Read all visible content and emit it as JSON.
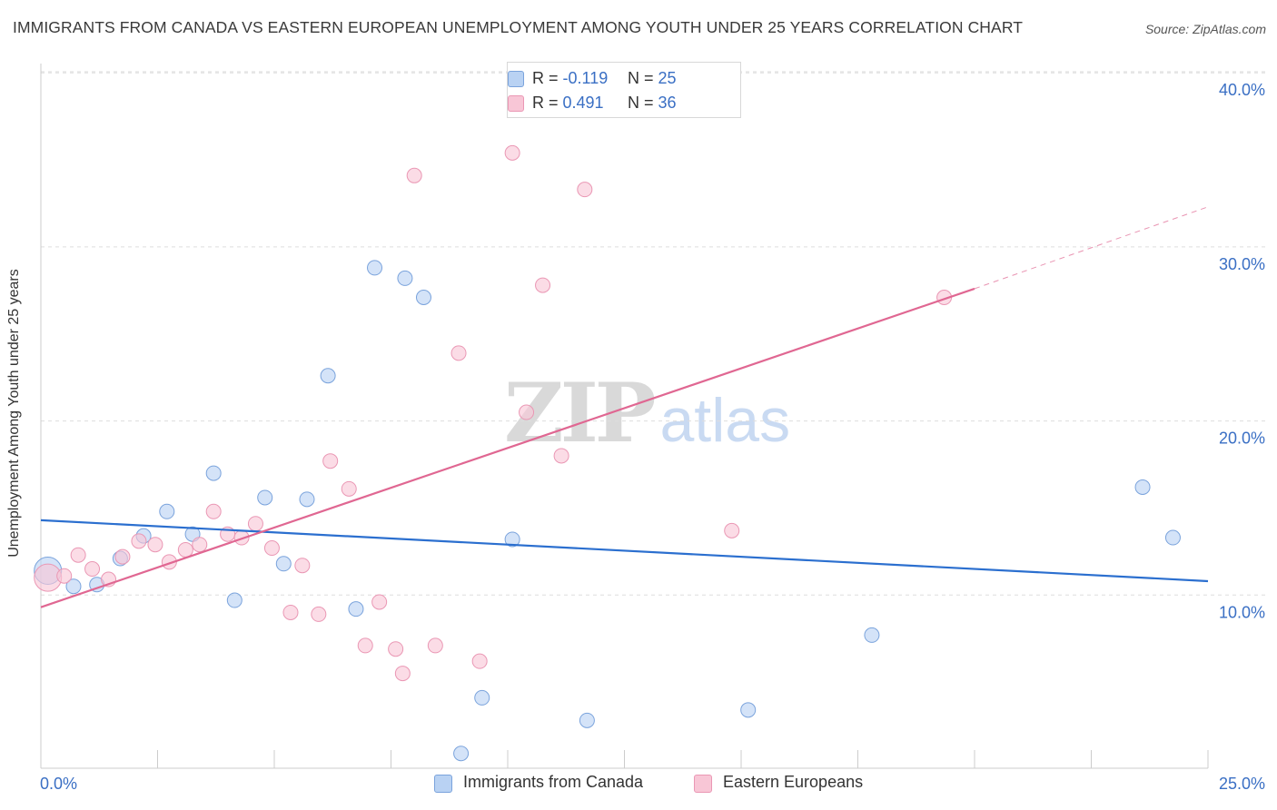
{
  "title": "IMMIGRANTS FROM CANADA VS EASTERN EUROPEAN UNEMPLOYMENT AMONG YOUTH UNDER 25 YEARS CORRELATION CHART",
  "source": "Source: ZipAtlas.com",
  "watermark": {
    "zip": "ZIP",
    "atlas": "atlas"
  },
  "legend_top": [
    {
      "r_label": "R = ",
      "r_value": "-0.119",
      "n_label": "N = ",
      "n_value": "25"
    },
    {
      "r_label": "R = ",
      "r_value": "0.491",
      "n_label": "N = ",
      "n_value": "36"
    }
  ],
  "colors": {
    "blue_fill": "#b9d2f3",
    "blue_stroke": "#7aa3dc",
    "blue_line": "#2b6fcf",
    "pink_fill": "#f8c6d6",
    "pink_stroke": "#ea97b4",
    "pink_line": "#e06792",
    "grid": "#dddddd",
    "tick_label": "#3a6fc4"
  },
  "chart_data": {
    "type": "scatter",
    "title": "IMMIGRANTS FROM CANADA VS EASTERN EUROPEAN UNEMPLOYMENT AMONG YOUTH UNDER 25 YEARS CORRELATION CHART",
    "xlabel": "",
    "ylabel": "Unemployment Among Youth under 25 years",
    "xlim": [
      0,
      25
    ],
    "ylim": [
      0,
      40.8
    ],
    "x_tick_labels": [
      {
        "value": 0,
        "label": "0.0%"
      },
      {
        "value": 25,
        "label": "25.0%"
      }
    ],
    "y_tick_labels": [
      {
        "value": 10,
        "label": "10.0%"
      },
      {
        "value": 20,
        "label": "20.0%"
      },
      {
        "value": 30,
        "label": "30.0%"
      },
      {
        "value": 40,
        "label": "40.0%"
      }
    ],
    "x_minor_ticks": [
      2.5,
      5,
      7.5,
      10,
      12.5,
      15,
      17.5,
      20,
      22.5,
      25
    ],
    "grid": true,
    "legend_position": "bottom-center",
    "series": [
      {
        "name": "Immigrants from Canada",
        "color": "blue",
        "r": -0.119,
        "n": 25,
        "trend": {
          "x": [
            0,
            25
          ],
          "y": [
            14.3,
            10.8
          ]
        },
        "points": [
          {
            "x": 0.15,
            "y": 11.4,
            "size": "large"
          },
          {
            "x": 0.7,
            "y": 10.5
          },
          {
            "x": 1.2,
            "y": 10.6
          },
          {
            "x": 1.7,
            "y": 12.1
          },
          {
            "x": 2.2,
            "y": 13.4
          },
          {
            "x": 2.7,
            "y": 14.8
          },
          {
            "x": 3.25,
            "y": 13.5
          },
          {
            "x": 3.7,
            "y": 17.0
          },
          {
            "x": 4.15,
            "y": 9.7
          },
          {
            "x": 4.8,
            "y": 15.6
          },
          {
            "x": 5.2,
            "y": 11.8
          },
          {
            "x": 5.7,
            "y": 15.5
          },
          {
            "x": 6.15,
            "y": 22.6
          },
          {
            "x": 6.75,
            "y": 9.2
          },
          {
            "x": 7.15,
            "y": 28.8
          },
          {
            "x": 7.8,
            "y": 28.2
          },
          {
            "x": 8.2,
            "y": 27.1
          },
          {
            "x": 9.0,
            "y": 0.9
          },
          {
            "x": 9.45,
            "y": 4.1
          },
          {
            "x": 10.1,
            "y": 13.2
          },
          {
            "x": 11.7,
            "y": 2.8
          },
          {
            "x": 15.15,
            "y": 3.4
          },
          {
            "x": 17.8,
            "y": 7.7
          },
          {
            "x": 23.6,
            "y": 16.2
          },
          {
            "x": 24.25,
            "y": 13.3
          }
        ]
      },
      {
        "name": "Eastern Europeans",
        "color": "pink",
        "r": 0.491,
        "n": 36,
        "trend": {
          "x": [
            0,
            20
          ],
          "y": [
            9.3,
            27.6
          ]
        },
        "trend_dashed": {
          "x": [
            20,
            25
          ],
          "y": [
            27.6,
            32.3
          ]
        },
        "points": [
          {
            "x": 0.15,
            "y": 11.0,
            "size": "large"
          },
          {
            "x": 0.5,
            "y": 11.1
          },
          {
            "x": 0.8,
            "y": 12.3
          },
          {
            "x": 1.1,
            "y": 11.5
          },
          {
            "x": 1.45,
            "y": 10.9
          },
          {
            "x": 1.75,
            "y": 12.2
          },
          {
            "x": 2.1,
            "y": 13.1
          },
          {
            "x": 2.45,
            "y": 12.9
          },
          {
            "x": 2.75,
            "y": 11.9
          },
          {
            "x": 3.1,
            "y": 12.6
          },
          {
            "x": 3.4,
            "y": 12.9
          },
          {
            "x": 3.7,
            "y": 14.8
          },
          {
            "x": 4.0,
            "y": 13.5
          },
          {
            "x": 4.3,
            "y": 13.3
          },
          {
            "x": 4.6,
            "y": 14.1
          },
          {
            "x": 4.95,
            "y": 12.7
          },
          {
            "x": 5.35,
            "y": 9.0
          },
          {
            "x": 5.6,
            "y": 11.7
          },
          {
            "x": 5.95,
            "y": 8.9
          },
          {
            "x": 6.2,
            "y": 17.7
          },
          {
            "x": 6.6,
            "y": 16.1
          },
          {
            "x": 6.95,
            "y": 7.1
          },
          {
            "x": 7.25,
            "y": 9.6
          },
          {
            "x": 7.6,
            "y": 6.9
          },
          {
            "x": 7.75,
            "y": 5.5
          },
          {
            "x": 8.0,
            "y": 34.1
          },
          {
            "x": 8.45,
            "y": 7.1
          },
          {
            "x": 8.95,
            "y": 23.9
          },
          {
            "x": 9.4,
            "y": 6.2
          },
          {
            "x": 10.1,
            "y": 35.4
          },
          {
            "x": 10.4,
            "y": 20.5
          },
          {
            "x": 10.75,
            "y": 27.8
          },
          {
            "x": 11.15,
            "y": 18.0
          },
          {
            "x": 11.65,
            "y": 33.3
          },
          {
            "x": 14.8,
            "y": 13.7
          },
          {
            "x": 19.35,
            "y": 27.1
          }
        ]
      }
    ]
  }
}
